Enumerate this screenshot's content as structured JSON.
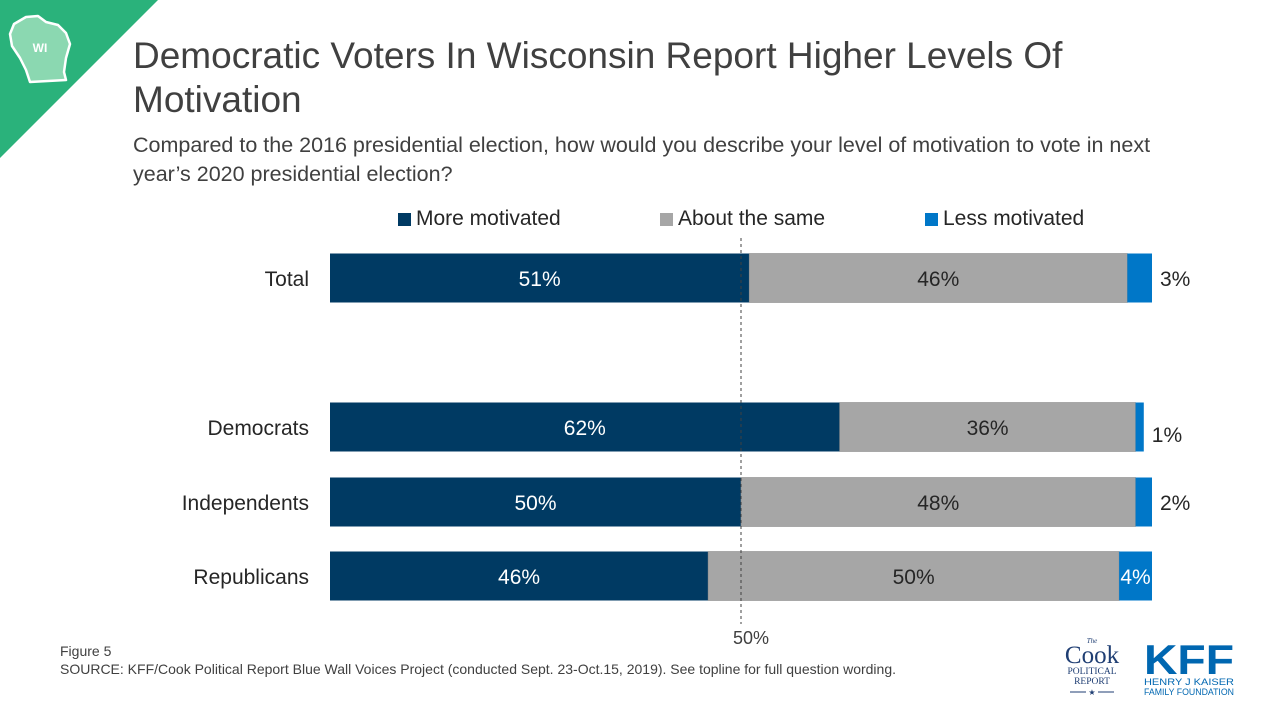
{
  "badge": {
    "state": "WI",
    "color": "#2ab27b"
  },
  "title": "Democratic Voters In Wisconsin Report Higher Levels Of Motivation",
  "subtitle": "Compared to the 2016 presidential election, how would you describe your level of motivation to vote in next year’s 2020 presidential election?",
  "chart_data": {
    "type": "bar",
    "orientation": "horizontal",
    "stacked": true,
    "categories": [
      "Total",
      "Democrats",
      "Independents",
      "Republicans"
    ],
    "series": [
      {
        "name": "More motivated",
        "color": "#003a63",
        "values": [
          51,
          62,
          50,
          46
        ],
        "labels": [
          "51%",
          "62%",
          "50%",
          "46%"
        ]
      },
      {
        "name": "About the same",
        "color": "#a6a6a6",
        "values": [
          46,
          36,
          48,
          50
        ],
        "labels": [
          "46%",
          "36%",
          "48%",
          "50%"
        ]
      },
      {
        "name": "Less motivated",
        "color": "#0077c8",
        "values": [
          3,
          1,
          2,
          4
        ],
        "labels": [
          "3%",
          "1%",
          "2%",
          "4%"
        ]
      }
    ],
    "reference_line": {
      "value": 50,
      "label": "50%"
    },
    "xlim": [
      0,
      100
    ],
    "legend_position": "top"
  },
  "footer": {
    "figure": "Figure 5",
    "source": "SOURCE: KFF/Cook Political Report Blue Wall Voices Project (conducted Sept. 23-Oct.15, 2019). See topline for full question wording."
  },
  "logos": {
    "cook": {
      "the": "The",
      "name": "Cook",
      "line1": "POLITICAL",
      "line2": "REPORT",
      "star": "★",
      "color": "#1f3e73"
    },
    "kff": {
      "name": "KFF",
      "line1": "HENRY J KAISER",
      "line2": "FAMILY FOUNDATION",
      "color": "#0067b1"
    }
  }
}
